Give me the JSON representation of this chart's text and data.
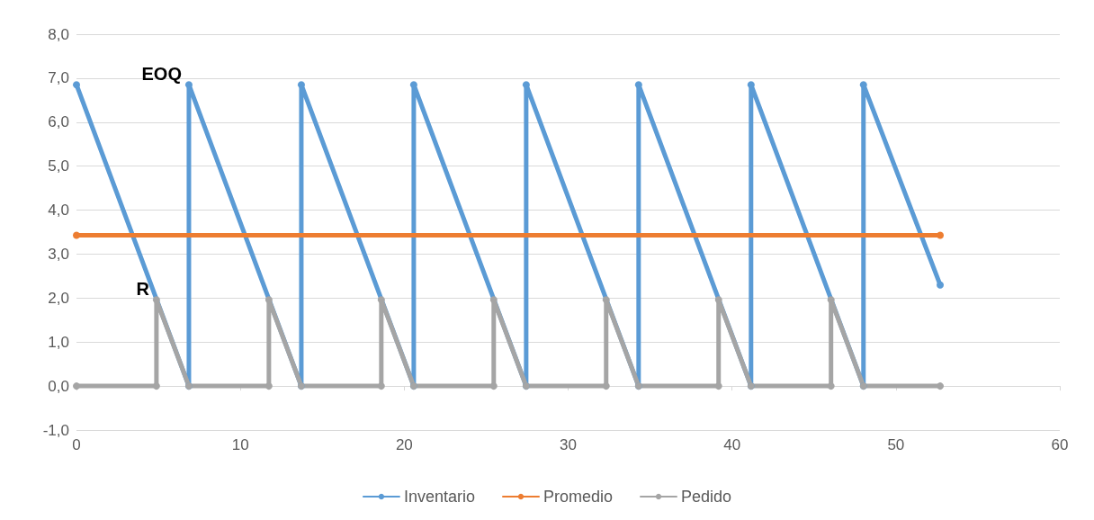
{
  "chart_data": {
    "type": "line",
    "xlim": [
      0,
      60
    ],
    "xticks": [
      0,
      10,
      20,
      30,
      40,
      50,
      60
    ],
    "ylim": [
      -1,
      8
    ],
    "yticks": [
      {
        "value": -1,
        "label": "-1,0"
      },
      {
        "value": 0,
        "label": "0,0"
      },
      {
        "value": 1,
        "label": "1,0"
      },
      {
        "value": 2,
        "label": "2,0"
      },
      {
        "value": 3,
        "label": "3,0"
      },
      {
        "value": 4,
        "label": "4,0"
      },
      {
        "value": 5,
        "label": "5,0"
      },
      {
        "value": 6,
        "label": "6,0"
      },
      {
        "value": 7,
        "label": "7,0"
      },
      {
        "value": 8,
        "label": "8,0"
      }
    ],
    "grid": "y",
    "legend": "bottom",
    "marker": "circle",
    "line_style": "solid",
    "series": [
      {
        "name": "Inventario",
        "color": "#5b9bd5",
        "x": [
          0,
          6.86,
          6.86,
          13.72,
          13.72,
          20.58,
          20.58,
          27.44,
          27.44,
          34.3,
          34.3,
          41.16,
          41.16,
          48.02,
          48.02,
          52.7
        ],
        "values": [
          6.85,
          0,
          6.85,
          0,
          6.85,
          0,
          6.85,
          0,
          6.85,
          0,
          6.85,
          0,
          6.85,
          0,
          6.85,
          2.3
        ]
      },
      {
        "name": "Promedio",
        "color": "#ed7d31",
        "x": [
          0,
          52.7
        ],
        "values": [
          3.43,
          3.43
        ]
      },
      {
        "name": "Pedido",
        "color": "#a5a5a5",
        "x": [
          0,
          4.88,
          4.88,
          6.86,
          11.74,
          11.74,
          13.72,
          18.6,
          18.6,
          20.58,
          25.46,
          25.46,
          27.44,
          32.32,
          32.32,
          34.3,
          39.18,
          39.18,
          41.16,
          46.04,
          46.04,
          48.02,
          52.7
        ],
        "values": [
          0,
          0,
          1.96,
          0,
          0,
          1.96,
          0,
          0,
          1.96,
          0,
          0,
          1.96,
          0,
          0,
          1.96,
          0,
          0,
          1.96,
          0,
          0,
          1.96,
          0,
          0
        ]
      }
    ],
    "annotations": [
      {
        "text": "EOQ",
        "x": 6.86,
        "y": 6.85
      },
      {
        "text": "R",
        "x": 4.88,
        "y": 1.96
      }
    ]
  }
}
